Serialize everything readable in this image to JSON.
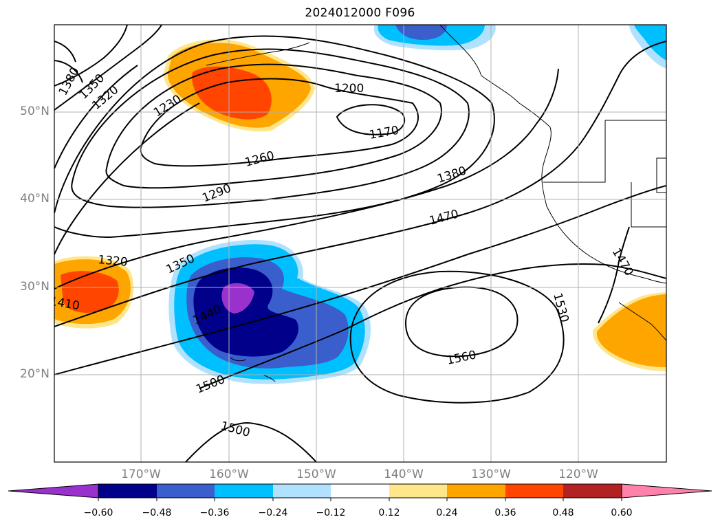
{
  "title": "2024012000 F096",
  "map": {
    "lat_labels": [
      "50°N",
      "40°N",
      "30°N",
      "20°N"
    ],
    "lon_labels": [
      "170°W",
      "160°W",
      "150°W",
      "140°W",
      "130°W",
      "120°W"
    ],
    "contour_labels": [
      "1380",
      "1350",
      "1320",
      "1230",
      "1200",
      "1170",
      "1260",
      "1290",
      "1380",
      "1470",
      "1320",
      "1350",
      "1410",
      "1440",
      "1500",
      "1560",
      "1530",
      "1500",
      "1470"
    ]
  },
  "colorbar": {
    "ticks": [
      "−0.60",
      "−0.48",
      "−0.36",
      "−0.24",
      "−0.12",
      "0.12",
      "0.24",
      "0.36",
      "0.48",
      "0.60"
    ],
    "colors": [
      "#9932cc",
      "#00008b",
      "#3a5fcd",
      "#00bfff",
      "#b0e2ff",
      "#ffffff",
      "#ffe68b",
      "#ffa500",
      "#ff4500",
      "#b22222",
      "#ff82ab"
    ]
  },
  "fill_colors": {
    "orange": "#ffa500",
    "red_orange": "#ff4500",
    "light_yellow": "#ffe68b",
    "navy": "#00008b",
    "royal_blue": "#3a5fcd",
    "deep_sky": "#00bfff",
    "light_sky": "#b0e2ff",
    "purple": "#9932cc"
  }
}
